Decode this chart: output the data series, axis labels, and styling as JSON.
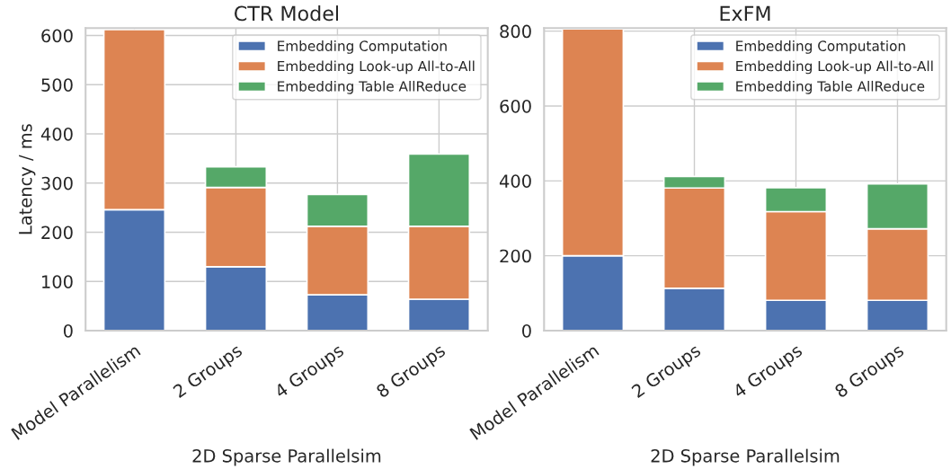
{
  "chart_data": [
    {
      "type": "bar",
      "title": "CTR Model",
      "xlabel": "2D Sparse Parallelsim",
      "ylabel": "Latency / ms",
      "stacked": true,
      "categories": [
        "Model Parallelism",
        "2 Groups",
        "4 Groups",
        "8 Groups"
      ],
      "ylim": [
        0,
        615
      ],
      "yticks": [
        0,
        100,
        200,
        300,
        400,
        500,
        600
      ],
      "grid": true,
      "legend": "top right",
      "series": [
        {
          "name": "Embedding Computation",
          "color": "#4c72b0",
          "values": [
            246,
            130,
            73,
            64
          ]
        },
        {
          "name": "Embedding Look-up All-to-All",
          "color": "#dd8452",
          "values": [
            366,
            161,
            139,
            148
          ]
        },
        {
          "name": "Embedding Table AllReduce",
          "color": "#55a868",
          "values": [
            null,
            42,
            65,
            147
          ]
        }
      ]
    },
    {
      "type": "bar",
      "title": "ExFM",
      "xlabel": "2D Sparse Parallelsim",
      "stacked": true,
      "categories": [
        "Model Parallelism",
        "2 Groups",
        "4 Groups",
        "8 Groups"
      ],
      "ylim": [
        0,
        808
      ],
      "yticks": [
        0,
        200,
        400,
        600,
        800
      ],
      "grid": true,
      "legend": "top right",
      "series": [
        {
          "name": "Embedding Computation",
          "color": "#4c72b0",
          "values": [
            200,
            113,
            81,
            81
          ]
        },
        {
          "name": "Embedding Look-up All-to-All",
          "color": "#dd8452",
          "values": [
            606,
            268,
            237,
            191
          ]
        },
        {
          "name": "Embedding Table AllReduce",
          "color": "#55a868",
          "values": [
            null,
            31,
            64,
            120
          ]
        }
      ]
    }
  ]
}
